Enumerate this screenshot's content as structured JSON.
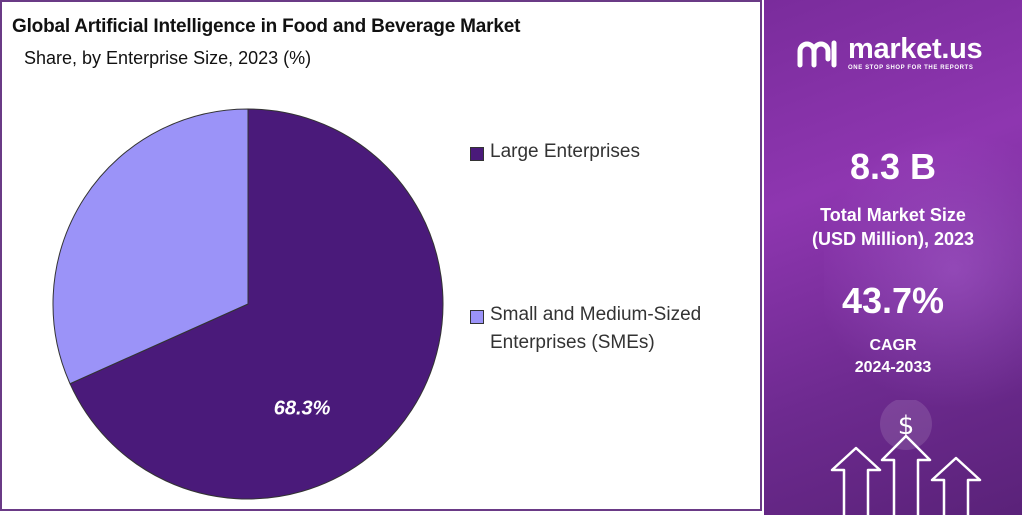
{
  "chart_data": {
    "type": "pie",
    "title": "Global Artificial Intelligence in Food and Beverage Market",
    "subtitle": "Share, by Enterprise Size, 2023 (%)",
    "slices": [
      {
        "name": "Large Enterprises",
        "value": 68.3,
        "color": "#4a1a7a",
        "label": "68.3%"
      },
      {
        "name": "Small and Medium-Sized Enterprises (SMEs)",
        "value": 31.7,
        "color": "#9b93f8",
        "label": ""
      }
    ],
    "legend_position": "right"
  },
  "brand": {
    "name": "market.us",
    "tagline": "ONE STOP SHOP FOR THE REPORTS"
  },
  "stats": {
    "market_size_value": "8.3 B",
    "market_size_label_1": "Total Market Size",
    "market_size_label_2": "(USD Million), 2023",
    "cagr_value": "43.7%",
    "cagr_label_1": "CAGR",
    "cagr_label_2": "2024-2033"
  },
  "icons": {
    "currency": "$"
  }
}
